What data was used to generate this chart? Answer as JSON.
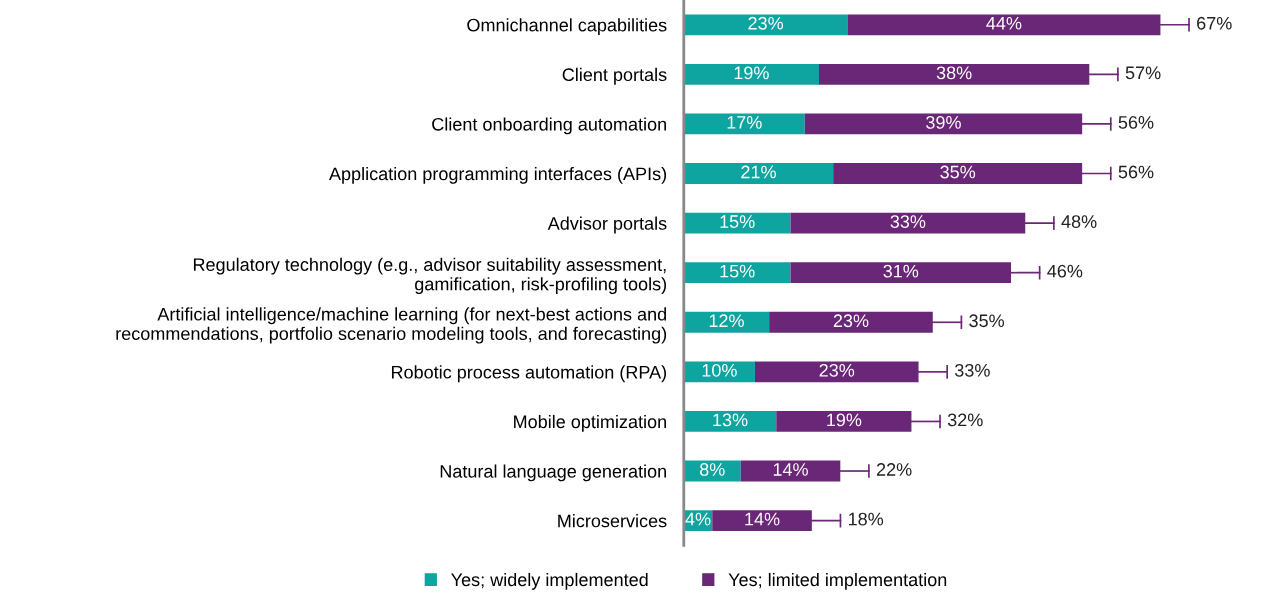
{
  "chart_data": {
    "type": "bar",
    "orientation": "horizontal",
    "stacked": true,
    "legend": "bottom",
    "grid": false,
    "categories": [
      "Omnichannel capabilities",
      "Client portals",
      "Client onboarding automation",
      "Application programming interfaces (APIs)",
      "Advisor portals",
      "Regulatory technology (e.g., advisor suitability assessment,\ngamification, risk-profiling tools)",
      "Artificial intelligence/machine learning (for next-best actions and\nrecommendations, portfolio scenario modeling tools, and forecasting)",
      "Robotic process automation (RPA)",
      "Mobile optimization",
      "Natural language generation",
      "Microservices"
    ],
    "series": [
      {
        "name": "Yes; widely implemented",
        "color": "#0ea5a0",
        "values": [
          23,
          19,
          17,
          21,
          15,
          15,
          12,
          10,
          13,
          8,
          4
        ],
        "value_labels": [
          "23%",
          "19%",
          "17%",
          "21%",
          "15%",
          "15%",
          "12%",
          "10%",
          "13%",
          "8%",
          "4%"
        ]
      },
      {
        "name": "Yes; limited implementation",
        "color": "#6b2777",
        "values": [
          44,
          38,
          39,
          35,
          33,
          31,
          23,
          23,
          19,
          14,
          14
        ],
        "value_labels": [
          "44%",
          "38%",
          "39%",
          "35%",
          "33%",
          "31%",
          "23%",
          "23%",
          "19%",
          "14%",
          "14%"
        ]
      }
    ],
    "totals": [
      "67%",
      "57%",
      "56%",
      "56%",
      "48%",
      "46%",
      "35%",
      "33%",
      "32%",
      "22%",
      "18%"
    ]
  }
}
